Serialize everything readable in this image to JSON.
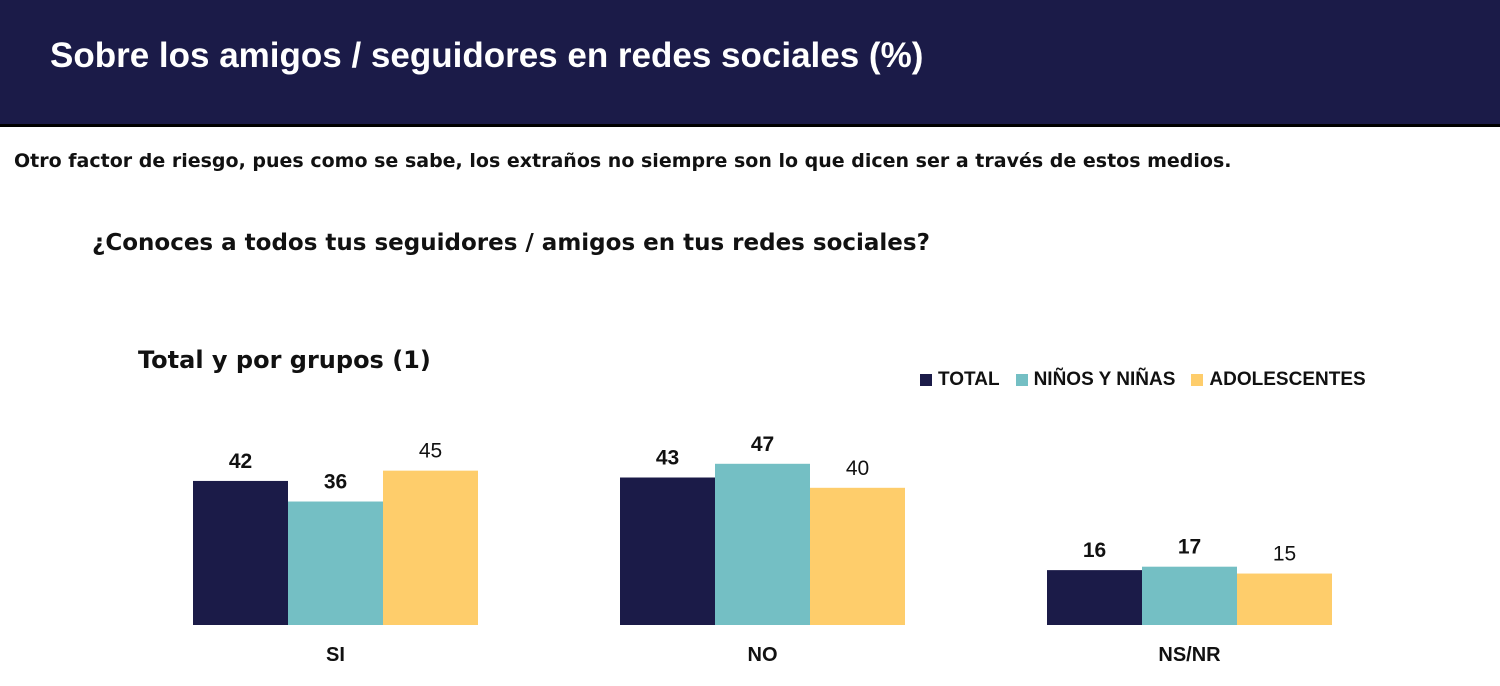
{
  "header": {
    "title": "Sobre los amigos / seguidores en redes sociales (%)"
  },
  "subtitle": "Otro factor de riesgo, pues como se sabe, los extraños no siempre son lo que dicen ser a través de estos medios.",
  "question": "¿Conoces a todos tus seguidores / amigos en tus redes sociales?",
  "chart_data": {
    "type": "bar",
    "title": "Total y por grupos (1)",
    "categories": [
      "SI",
      "NO",
      "NS/NR"
    ],
    "series": [
      {
        "name": "TOTAL",
        "color": "#1b1b48",
        "values": [
          42,
          43,
          16
        ],
        "label_bold": true
      },
      {
        "name": "NIÑOS Y NIÑAS",
        "color": "#74bfc4",
        "values": [
          36,
          47,
          17
        ],
        "label_bold": true
      },
      {
        "name": "ADOLESCENTES",
        "color": "#fecd6b",
        "values": [
          45,
          40,
          15
        ],
        "label_bold": false
      }
    ],
    "xlabel": "",
    "ylabel": "",
    "ylim": [
      0,
      47
    ],
    "grid": false,
    "legend_position": "top-right"
  }
}
